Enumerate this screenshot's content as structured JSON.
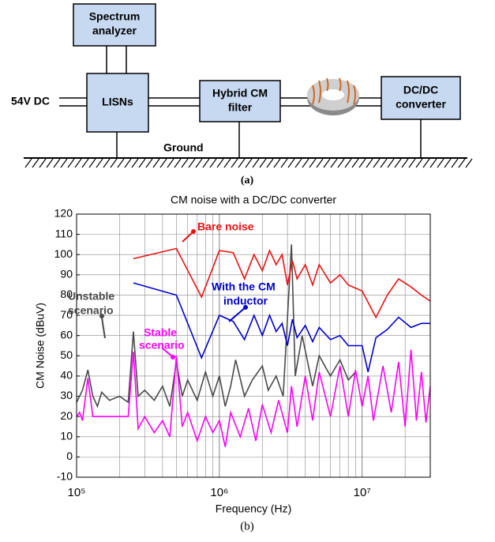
{
  "diagram": {
    "nodes": [
      {
        "lines": [
          "Spectrum",
          "analyzer"
        ]
      },
      {
        "lines": [
          "LISNs"
        ]
      },
      {
        "lines": [
          "Hybrid CM",
          "filter"
        ]
      },
      {
        "lines": [
          "DC/DC",
          "converter"
        ]
      }
    ],
    "source": "54V DC",
    "ground": "Ground",
    "caption": "(a)"
  },
  "chart_data": {
    "type": "line",
    "title": "CM noise with a DC/DC converter",
    "xlabel": "Frequency (Hz)",
    "ylabel": "CM Noise (dBuV)",
    "caption": "(b)",
    "log_x": true,
    "grid": true,
    "xlim": [
      100000,
      30000000
    ],
    "xticks": [
      {
        "value": 100000,
        "label": "10⁵"
      },
      {
        "value": 1000000,
        "label": "10⁶"
      },
      {
        "value": 10000000,
        "label": "10⁷"
      }
    ],
    "ylim": [
      -10,
      120
    ],
    "yticks": [
      -10,
      0,
      10,
      20,
      30,
      40,
      50,
      60,
      70,
      80,
      90,
      100,
      110,
      120
    ],
    "series": [
      {
        "label_lines": [
          "Unstable",
          "scenario"
        ],
        "color": "#4a4a4a",
        "x": [
          100000,
          110000,
          120000,
          130000,
          140000,
          150000,
          170000,
          200000,
          230000,
          250000,
          270000,
          300000,
          350000,
          400000,
          450000,
          500000,
          550000,
          600000,
          700000,
          800000,
          900000,
          1000000,
          1100000,
          1200000,
          1300000,
          1500000,
          1700000,
          2000000,
          2200000,
          2500000,
          2800000,
          3200000,
          3400000,
          3800000,
          4500000,
          5000000,
          6000000,
          7000000,
          8000000,
          9000000
        ],
        "values": [
          27,
          33,
          43,
          30,
          25,
          32,
          28,
          30,
          27,
          62,
          30,
          33,
          28,
          35,
          25,
          47,
          30,
          38,
          28,
          42,
          30,
          40,
          25,
          35,
          48,
          30,
          38,
          45,
          33,
          40,
          30,
          105,
          40,
          60,
          35,
          50,
          40,
          48,
          38,
          42
        ]
      },
      {
        "label_lines": [
          "Stable",
          "scenario"
        ],
        "color": "#ff00ff",
        "x": [
          100000,
          105000,
          110000,
          120000,
          130000,
          150000,
          180000,
          200000,
          230000,
          250000,
          270000,
          300000,
          350000,
          400000,
          450000,
          500000,
          550000,
          600000,
          700000,
          800000,
          900000,
          1000000,
          1100000,
          1200000,
          1400000,
          1600000,
          1800000,
          2000000,
          2300000,
          2600000,
          3000000,
          3200000,
          3500000,
          4000000,
          4500000,
          5000000,
          6000000,
          7000000,
          8000000,
          9000000,
          10000000,
          11000000,
          12000000,
          14000000,
          16000000,
          18000000,
          20000000,
          22000000,
          24000000,
          26000000,
          28000000,
          30000000
        ],
        "values": [
          20,
          22,
          18,
          39,
          20,
          20,
          20,
          20,
          20,
          52,
          14,
          20,
          12,
          18,
          10,
          50,
          15,
          22,
          8,
          20,
          12,
          18,
          5,
          22,
          10,
          24,
          8,
          26,
          12,
          28,
          12,
          35,
          15,
          40,
          18,
          42,
          20,
          45,
          20,
          43,
          25,
          40,
          18,
          45,
          22,
          47,
          15,
          53,
          18,
          42,
          17,
          35
        ]
      },
      {
        "label_lines": [
          "With the CM",
          "inductor"
        ],
        "color": "#0000d0",
        "x": [
          250000,
          500000,
          750000,
          1000000,
          1250000,
          1500000,
          1750000,
          2000000,
          2250000,
          2500000,
          2750000,
          3000000,
          3250000,
          3500000,
          4000000,
          4500000,
          5000000,
          6000000,
          7000000,
          8000000,
          10000000,
          11000000,
          12500000,
          15000000,
          18000000,
          22000000,
          26000000,
          30000000
        ],
        "values": [
          86,
          80,
          49,
          70,
          67,
          58,
          70,
          60,
          70,
          62,
          66,
          55,
          68,
          59,
          65,
          57,
          64,
          58,
          60,
          55,
          55,
          42,
          59,
          63,
          69,
          64,
          66,
          66
        ]
      },
      {
        "label_lines": [
          "Bare noise"
        ],
        "color": "#ee1111",
        "x": [
          250000,
          500000,
          750000,
          1000000,
          1250000,
          1500000,
          1750000,
          2000000,
          2250000,
          2500000,
          2750000,
          3000000,
          3250000,
          3500000,
          4000000,
          4500000,
          5000000,
          6000000,
          7000000,
          8000000,
          10000000,
          12500000,
          15000000,
          18000000,
          22000000,
          26000000,
          30000000
        ],
        "values": [
          98,
          103,
          79,
          102,
          101,
          88,
          100,
          92,
          102,
          95,
          100,
          85,
          97,
          88,
          95,
          85,
          95,
          86,
          90,
          85,
          82,
          69,
          80,
          88,
          84,
          80,
          77
        ]
      }
    ]
  }
}
